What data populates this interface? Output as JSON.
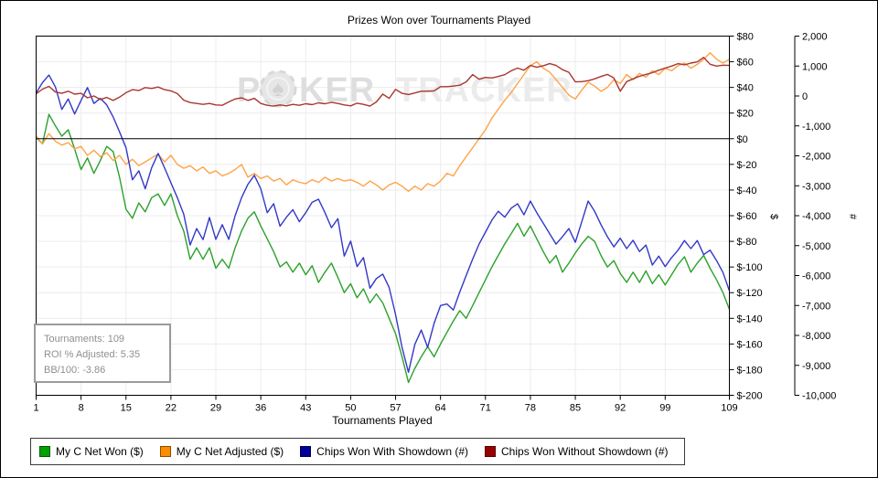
{
  "title": "Prizes Won over Tournaments Played",
  "watermark": {
    "part1": "P",
    "chip_symbol": "♠",
    "part2": "KER",
    "part3": "TRACKER"
  },
  "info_box": {
    "lines": [
      "Tournaments: 109",
      "ROI % Adjusted: 5.35",
      "BB/100: -3.86"
    ]
  },
  "chart_data": {
    "type": "line",
    "title": "Prizes Won over Tournaments Played",
    "xlabel": "Tournaments Played",
    "x_range": [
      1,
      109
    ],
    "x_ticks": [
      1,
      8,
      15,
      22,
      29,
      36,
      43,
      50,
      57,
      64,
      71,
      78,
      85,
      92,
      99,
      109
    ],
    "grid": true,
    "legend_position": "bottom",
    "axes": {
      "dollar": {
        "label": "$",
        "side": "right",
        "range": [
          -200,
          80
        ],
        "tick_step": 20,
        "ticks": [
          80,
          60,
          40,
          20,
          0,
          -20,
          -40,
          -60,
          -80,
          -100,
          -120,
          -140,
          -160,
          -180,
          -200
        ],
        "tick_labels": [
          "$80",
          "$60",
          "$40",
          "$20",
          "$0",
          "$-20",
          "$-40",
          "$-60",
          "$-80",
          "$-100",
          "$-120",
          "$-140",
          "$-160",
          "$-180",
          "$-200"
        ]
      },
      "count": {
        "label": "#",
        "side": "far-right",
        "range": [
          -10000,
          2000
        ],
        "tick_step": 1000,
        "ticks": [
          2000,
          1000,
          0,
          -1000,
          -2000,
          -3000,
          -4000,
          -5000,
          -6000,
          -7000,
          -8000,
          -9000,
          -10000
        ],
        "tick_labels": [
          "2,000",
          "1,000",
          "0",
          "-1,000",
          "-2,000",
          "-3,000",
          "-4,000",
          "-5,000",
          "-6,000",
          "-7,000",
          "-8,000",
          "-9,000",
          "-10,000"
        ]
      }
    },
    "series": [
      {
        "name": "My C Net Won ($)",
        "axis": "dollar",
        "color": "#2ca12c",
        "legend_color": "#00a000",
        "values": [
          1,
          -4,
          19,
          10,
          2,
          7,
          -8,
          -24,
          -15,
          -27,
          -17,
          -6,
          -10,
          -30,
          -55,
          -62,
          -50,
          -57,
          -46,
          -43,
          -52,
          -43,
          -60,
          -72,
          -94,
          -85,
          -94,
          -85,
          -101,
          -94,
          -101,
          -85,
          -72,
          -62,
          -57,
          -68,
          -78,
          -88,
          -100,
          -96,
          -104,
          -97,
          -106,
          -99,
          -112,
          -104,
          -97,
          -108,
          -120,
          -113,
          -124,
          -117,
          -128,
          -121,
          -128,
          -140,
          -152,
          -170,
          -190,
          -179,
          -170,
          -162,
          -170,
          -160,
          -151,
          -142,
          -134,
          -140,
          -130,
          -120,
          -110,
          -100,
          -91,
          -82,
          -74,
          -66,
          -76,
          -68,
          -78,
          -88,
          -97,
          -91,
          -104,
          -97,
          -89,
          -82,
          -76,
          -80,
          -91,
          -100,
          -95,
          -105,
          -112,
          -104,
          -112,
          -103,
          -113,
          -106,
          -114,
          -106,
          -98,
          -92,
          -104,
          -97,
          -91,
          -101,
          -110,
          -120,
          -133
        ]
      },
      {
        "name": "My C Net Adjusted ($)",
        "axis": "dollar",
        "color": "#ffa347",
        "legend_color": "#ff8c00",
        "values": [
          2,
          -4,
          4,
          -2,
          -5,
          -3,
          -8,
          -6,
          -13,
          -9,
          -14,
          -11,
          -17,
          -13,
          -20,
          -16,
          -21,
          -18,
          -15,
          -12,
          -18,
          -13,
          -20,
          -23,
          -21,
          -25,
          -22,
          -27,
          -25,
          -29,
          -27,
          -24,
          -20,
          -30,
          -27,
          -31,
          -29,
          -33,
          -31,
          -36,
          -32,
          -34,
          -35,
          -32,
          -34,
          -30,
          -33,
          -31,
          -33,
          -32,
          -34,
          -37,
          -33,
          -36,
          -40,
          -36,
          -34,
          -37,
          -41,
          -37,
          -40,
          -35,
          -37,
          -33,
          -27,
          -29,
          -21,
          -14,
          -7,
          0,
          7,
          16,
          23,
          30,
          36,
          43,
          50,
          57,
          60,
          55,
          52,
          46,
          40,
          34,
          31,
          38,
          44,
          41,
          37,
          40,
          46,
          43,
          50,
          46,
          51,
          48,
          53,
          50,
          55,
          53,
          57,
          59,
          55,
          58,
          62,
          67,
          62,
          59,
          62
        ]
      },
      {
        "name": "Chips Won With Showdown (#)",
        "axis": "count",
        "color": "#3338c8",
        "legend_color": "#000099",
        "values": [
          100,
          450,
          700,
          300,
          -450,
          -100,
          -600,
          -150,
          280,
          -250,
          -80,
          -300,
          -700,
          -1200,
          -1730,
          -2800,
          -2500,
          -3100,
          -2400,
          -1920,
          -2400,
          -2900,
          -3400,
          -3950,
          -4980,
          -4430,
          -4800,
          -4060,
          -4790,
          -4300,
          -4790,
          -4000,
          -3400,
          -2950,
          -2650,
          -3100,
          -3900,
          -3600,
          -4350,
          -4050,
          -3800,
          -4200,
          -3900,
          -3550,
          -3450,
          -3900,
          -4400,
          -4100,
          -5350,
          -4850,
          -5700,
          -5400,
          -6420,
          -6100,
          -5950,
          -6400,
          -7300,
          -8400,
          -9230,
          -8300,
          -7820,
          -8400,
          -7600,
          -7000,
          -6950,
          -7150,
          -6550,
          -6000,
          -5450,
          -4950,
          -4550,
          -4150,
          -3850,
          -4050,
          -3750,
          -3600,
          -3970,
          -3510,
          -3900,
          -4250,
          -4600,
          -4950,
          -4700,
          -4430,
          -4890,
          -4200,
          -3510,
          -3850,
          -4300,
          -4700,
          -5040,
          -4750,
          -5100,
          -4820,
          -5200,
          -4980,
          -5650,
          -5350,
          -5700,
          -5400,
          -5150,
          -4830,
          -5100,
          -4830,
          -5300,
          -5150,
          -5500,
          -5900,
          -6510
        ]
      },
      {
        "name": "Chips Won Without Showdown (#)",
        "axis": "count",
        "color": "#a9372e",
        "legend_color": "#990000",
        "values": [
          70,
          230,
          320,
          130,
          90,
          160,
          60,
          90,
          -60,
          0,
          -120,
          -50,
          -150,
          -40,
          110,
          210,
          180,
          280,
          250,
          300,
          210,
          170,
          80,
          -140,
          -220,
          -250,
          -280,
          -250,
          -300,
          -310,
          -200,
          -100,
          -60,
          -150,
          -80,
          -250,
          -310,
          -340,
          -300,
          -330,
          -280,
          -310,
          -260,
          -290,
          -230,
          -260,
          -210,
          -250,
          -300,
          -330,
          -240,
          -280,
          -340,
          -200,
          60,
          -80,
          220,
          90,
          50,
          100,
          160,
          160,
          170,
          310,
          310,
          330,
          360,
          470,
          715,
          560,
          620,
          600,
          650,
          710,
          840,
          930,
          860,
          1020,
          960,
          1010,
          1080,
          1020,
          880,
          790,
          470,
          480,
          510,
          570,
          650,
          720,
          600,
          160,
          480,
          570,
          660,
          720,
          780,
          860,
          930,
          1000,
          1080,
          1040,
          1100,
          1140,
          1290,
          1060,
          1000,
          1030,
          1020
        ]
      }
    ]
  }
}
